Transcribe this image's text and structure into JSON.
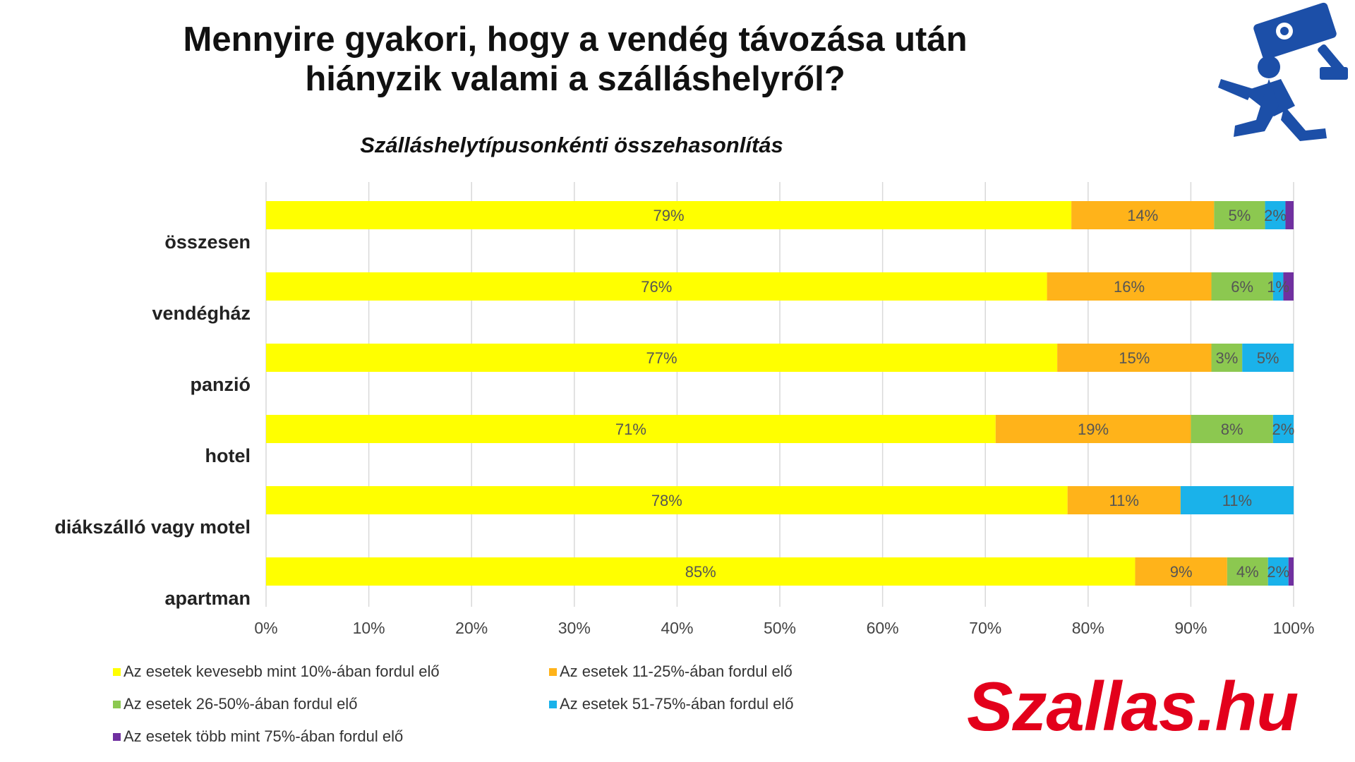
{
  "title_lines": [
    "Mennyire gyakori, hogy a vendég távozása után",
    "hiányzik valami a szálláshelyről?"
  ],
  "subtitle": "Szálláshelytípusonkénti összehasonlítás",
  "logo_text": "Szallas.hu",
  "icon": "thief-security-camera-icon",
  "chart_data": {
    "type": "bar",
    "orientation": "horizontal",
    "stacked": true,
    "percent_stacked": true,
    "categories": [
      "összesen",
      "vendégház",
      "panzió",
      "hotel",
      "diákszálló vagy motel",
      "apartman"
    ],
    "series": [
      {
        "name": "Az esetek kevesebb mint 10%-ában fordul elő",
        "color": "#ffff00",
        "values": [
          79,
          76,
          77,
          71,
          78,
          85
        ],
        "labels": [
          "79%",
          "76%",
          "77%",
          "71%",
          "78%",
          "85%"
        ]
      },
      {
        "name": "Az esetek 11-25%-ában fordul elő",
        "color": "#ffb31a",
        "values": [
          14,
          16,
          15,
          19,
          11,
          9
        ],
        "labels": [
          "14%",
          "16%",
          "15%",
          "19%",
          "11%",
          "9%"
        ]
      },
      {
        "name": "Az esetek 26-50%-ában fordul elő",
        "color": "#8cc850",
        "values": [
          5,
          6,
          3,
          8,
          0,
          4
        ],
        "labels": [
          "5%",
          "6%",
          "3%",
          "8%",
          "",
          "4%"
        ]
      },
      {
        "name": "Az esetek 51-75%-ában fordul elő",
        "color": "#1ab2ea",
        "values": [
          2,
          1,
          5,
          2,
          11,
          2
        ],
        "labels": [
          "2%",
          "1%",
          "5%",
          "2%",
          "11%",
          "2%"
        ]
      },
      {
        "name": "Az esetek több mint 75%-ában fordul elő",
        "color": "#7030a0",
        "values": [
          0.8,
          1.0,
          0,
          0,
          0,
          0.5
        ],
        "labels": [
          "",
          "",
          "",
          "",
          "",
          ""
        ]
      }
    ],
    "xlim": [
      0,
      100
    ],
    "xticks": [
      "0%",
      "10%",
      "20%",
      "30%",
      "40%",
      "50%",
      "60%",
      "70%",
      "80%",
      "90%",
      "100%"
    ],
    "grid": true,
    "legend_position": "bottom"
  }
}
